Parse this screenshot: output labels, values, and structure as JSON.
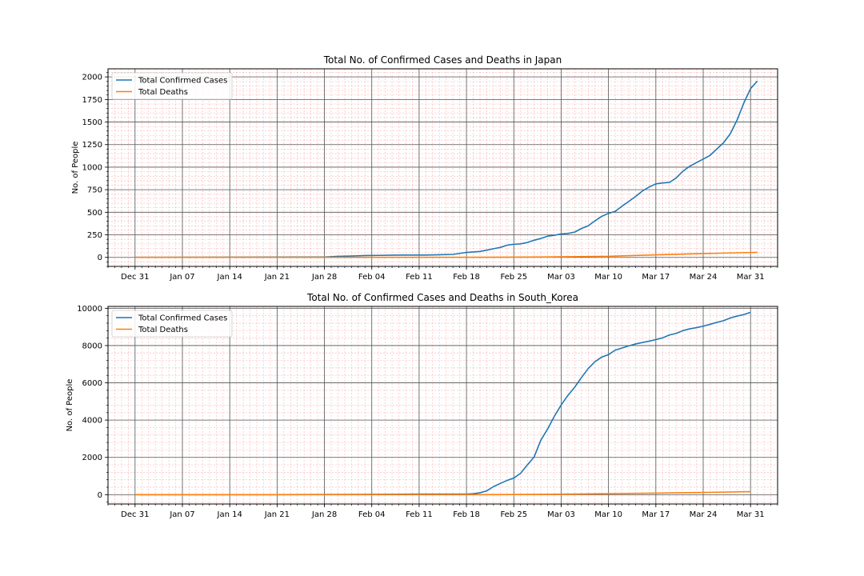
{
  "chart_data": [
    {
      "type": "line",
      "title": "Total No. of Confirmed Cases and Deaths in Japan",
      "xlabel": "",
      "ylabel": "No. of People",
      "xlim": [
        "2019-12-27",
        "2020-04-04"
      ],
      "ylim": [
        -100,
        2090
      ],
      "yticks": [
        0,
        250,
        500,
        750,
        1000,
        1250,
        1500,
        1750,
        2000
      ],
      "xtick_labels": [
        "Dec 31",
        "Jan 07",
        "Jan 14",
        "Jan 21",
        "Jan 28",
        "Feb 04",
        "Feb 11",
        "Feb 18",
        "Feb 25",
        "Mar 03",
        "Mar 10",
        "Mar 17",
        "Mar 24",
        "Mar 31"
      ],
      "xtick_dates": [
        "2019-12-31",
        "2020-01-07",
        "2020-01-14",
        "2020-01-21",
        "2020-01-28",
        "2020-02-04",
        "2020-02-11",
        "2020-02-18",
        "2020-02-25",
        "2020-03-03",
        "2020-03-10",
        "2020-03-17",
        "2020-03-24",
        "2020-03-31"
      ],
      "grid": true,
      "minor_grid": true,
      "legend": "upper-left",
      "series": [
        {
          "name": "Total Confirmed Cases",
          "color": "#1f77b4",
          "points": [
            [
              "2019-12-31",
              0
            ],
            [
              "2020-01-28",
              4
            ],
            [
              "2020-01-30",
              11
            ],
            [
              "2020-02-01",
              15
            ],
            [
              "2020-02-03",
              20
            ],
            [
              "2020-02-05",
              22
            ],
            [
              "2020-02-07",
              25
            ],
            [
              "2020-02-09",
              26
            ],
            [
              "2020-02-12",
              26
            ],
            [
              "2020-02-14",
              29
            ],
            [
              "2020-02-16",
              33
            ],
            [
              "2020-02-18",
              55
            ],
            [
              "2020-02-20",
              66
            ],
            [
              "2020-02-21",
              80
            ],
            [
              "2020-02-22",
              96
            ],
            [
              "2020-02-23",
              110
            ],
            [
              "2020-02-24",
              135
            ],
            [
              "2020-02-25",
              145
            ],
            [
              "2020-02-26",
              150
            ],
            [
              "2020-02-27",
              165
            ],
            [
              "2020-02-28",
              190
            ],
            [
              "2020-02-29",
              210
            ],
            [
              "2020-03-01",
              235
            ],
            [
              "2020-03-02",
              245
            ],
            [
              "2020-03-03",
              260
            ],
            [
              "2020-03-04",
              265
            ],
            [
              "2020-03-05",
              280
            ],
            [
              "2020-03-06",
              320
            ],
            [
              "2020-03-07",
              350
            ],
            [
              "2020-03-08",
              405
            ],
            [
              "2020-03-09",
              455
            ],
            [
              "2020-03-10",
              488
            ],
            [
              "2020-03-11",
              510
            ],
            [
              "2020-03-12",
              568
            ],
            [
              "2020-03-13",
              620
            ],
            [
              "2020-03-14",
              675
            ],
            [
              "2020-03-15",
              735
            ],
            [
              "2020-03-16",
              780
            ],
            [
              "2020-03-17",
              815
            ],
            [
              "2020-03-18",
              825
            ],
            [
              "2020-03-19",
              830
            ],
            [
              "2020-03-20",
              880
            ],
            [
              "2020-03-21",
              955
            ],
            [
              "2020-03-22",
              1010
            ],
            [
              "2020-03-23",
              1050
            ],
            [
              "2020-03-24",
              1090
            ],
            [
              "2020-03-25",
              1130
            ],
            [
              "2020-03-26",
              1200
            ],
            [
              "2020-03-27",
              1270
            ],
            [
              "2020-03-28",
              1370
            ],
            [
              "2020-03-29",
              1520
            ],
            [
              "2020-03-30",
              1710
            ],
            [
              "2020-03-31",
              1870
            ],
            [
              "2020-04-01",
              1955
            ]
          ]
        },
        {
          "name": "Total Deaths",
          "color": "#ff7f0e",
          "points": [
            [
              "2019-12-31",
              0
            ],
            [
              "2020-02-20",
              1
            ],
            [
              "2020-03-01",
              5
            ],
            [
              "2020-03-10",
              12
            ],
            [
              "2020-03-17",
              28
            ],
            [
              "2020-03-24",
              42
            ],
            [
              "2020-03-31",
              54
            ],
            [
              "2020-04-01",
              56
            ]
          ]
        }
      ]
    },
    {
      "type": "line",
      "title": "Total No. of Confirmed Cases and Deaths in South_Korea",
      "xlabel": "",
      "ylabel": "No. of People",
      "xlim": [
        "2019-12-27",
        "2020-04-04"
      ],
      "ylim": [
        -500,
        10100
      ],
      "yticks": [
        0,
        2000,
        4000,
        6000,
        8000,
        10000
      ],
      "xtick_labels": [
        "Dec 31",
        "Jan 07",
        "Jan 14",
        "Jan 21",
        "Jan 28",
        "Feb 04",
        "Feb 11",
        "Feb 18",
        "Feb 25",
        "Mar 03",
        "Mar 10",
        "Mar 17",
        "Mar 24",
        "Mar 31"
      ],
      "xtick_dates": [
        "2019-12-31",
        "2020-01-07",
        "2020-01-14",
        "2020-01-21",
        "2020-01-28",
        "2020-02-04",
        "2020-02-11",
        "2020-02-18",
        "2020-02-25",
        "2020-03-03",
        "2020-03-10",
        "2020-03-17",
        "2020-03-24",
        "2020-03-31"
      ],
      "grid": true,
      "minor_grid": true,
      "legend": "upper-left",
      "series": [
        {
          "name": "Total Confirmed Cases",
          "color": "#1f77b4",
          "points": [
            [
              "2019-12-31",
              0
            ],
            [
              "2020-01-20",
              1
            ],
            [
              "2020-02-01",
              12
            ],
            [
              "2020-02-10",
              27
            ],
            [
              "2020-02-18",
              31
            ],
            [
              "2020-02-19",
              51
            ],
            [
              "2020-02-20",
              104
            ],
            [
              "2020-02-21",
              204
            ],
            [
              "2020-02-22",
              433
            ],
            [
              "2020-02-23",
              602
            ],
            [
              "2020-02-24",
              763
            ],
            [
              "2020-02-25",
              893
            ],
            [
              "2020-02-26",
              1146
            ],
            [
              "2020-02-27",
              1595
            ],
            [
              "2020-02-28",
              2022
            ],
            [
              "2020-02-29",
              2931
            ],
            [
              "2020-03-01",
              3526
            ],
            [
              "2020-03-02",
              4212
            ],
            [
              "2020-03-03",
              4812
            ],
            [
              "2020-03-04",
              5328
            ],
            [
              "2020-03-05",
              5766
            ],
            [
              "2020-03-06",
              6284
            ],
            [
              "2020-03-07",
              6767
            ],
            [
              "2020-03-08",
              7134
            ],
            [
              "2020-03-09",
              7382
            ],
            [
              "2020-03-10",
              7513
            ],
            [
              "2020-03-11",
              7755
            ],
            [
              "2020-03-12",
              7869
            ],
            [
              "2020-03-13",
              7979
            ],
            [
              "2020-03-14",
              8086
            ],
            [
              "2020-03-15",
              8162
            ],
            [
              "2020-03-16",
              8236
            ],
            [
              "2020-03-17",
              8320
            ],
            [
              "2020-03-18",
              8413
            ],
            [
              "2020-03-19",
              8565
            ],
            [
              "2020-03-20",
              8652
            ],
            [
              "2020-03-21",
              8799
            ],
            [
              "2020-03-22",
              8897
            ],
            [
              "2020-03-23",
              8961
            ],
            [
              "2020-03-24",
              9037
            ],
            [
              "2020-03-25",
              9137
            ],
            [
              "2020-03-26",
              9241
            ],
            [
              "2020-03-27",
              9332
            ],
            [
              "2020-03-28",
              9478
            ],
            [
              "2020-03-29",
              9583
            ],
            [
              "2020-03-30",
              9661
            ],
            [
              "2020-03-31",
              9786
            ]
          ]
        },
        {
          "name": "Total Deaths",
          "color": "#ff7f0e",
          "points": [
            [
              "2019-12-31",
              0
            ],
            [
              "2020-02-20",
              1
            ],
            [
              "2020-02-29",
              17
            ],
            [
              "2020-03-05",
              35
            ],
            [
              "2020-03-10",
              54
            ],
            [
              "2020-03-17",
              81
            ],
            [
              "2020-03-24",
              120
            ],
            [
              "2020-03-31",
              162
            ]
          ]
        }
      ]
    }
  ]
}
